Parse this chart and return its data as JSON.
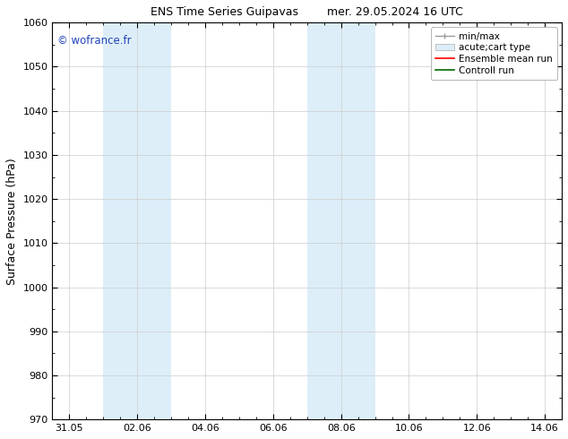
{
  "title": "ENS Time Series Guipavas        mer. 29.05.2024 16 UTC",
  "ylabel": "Surface Pressure (hPa)",
  "ylim": [
    970,
    1060
  ],
  "yticks": [
    970,
    980,
    990,
    1000,
    1010,
    1020,
    1030,
    1040,
    1050,
    1060
  ],
  "xtick_labels": [
    "31.05",
    "02.06",
    "04.06",
    "06.06",
    "08.06",
    "10.06",
    "12.06",
    "14.06"
  ],
  "xtick_positions": [
    0,
    2,
    4,
    6,
    8,
    10,
    12,
    14
  ],
  "xlim": [
    -0.5,
    14.5
  ],
  "shaded_bands": [
    {
      "xmin": 1.0,
      "xmax": 3.0
    },
    {
      "xmin": 7.0,
      "xmax": 9.0
    }
  ],
  "shade_color": "#ddeef8",
  "watermark": "© wofrance.fr",
  "watermark_color": "#2244bb",
  "bg_color": "#ffffff",
  "plot_bg_color": "#ffffff",
  "grid_color": "#cccccc",
  "title_fontsize": 9,
  "tick_fontsize": 8,
  "ylabel_fontsize": 9,
  "legend_fontsize": 7.5
}
